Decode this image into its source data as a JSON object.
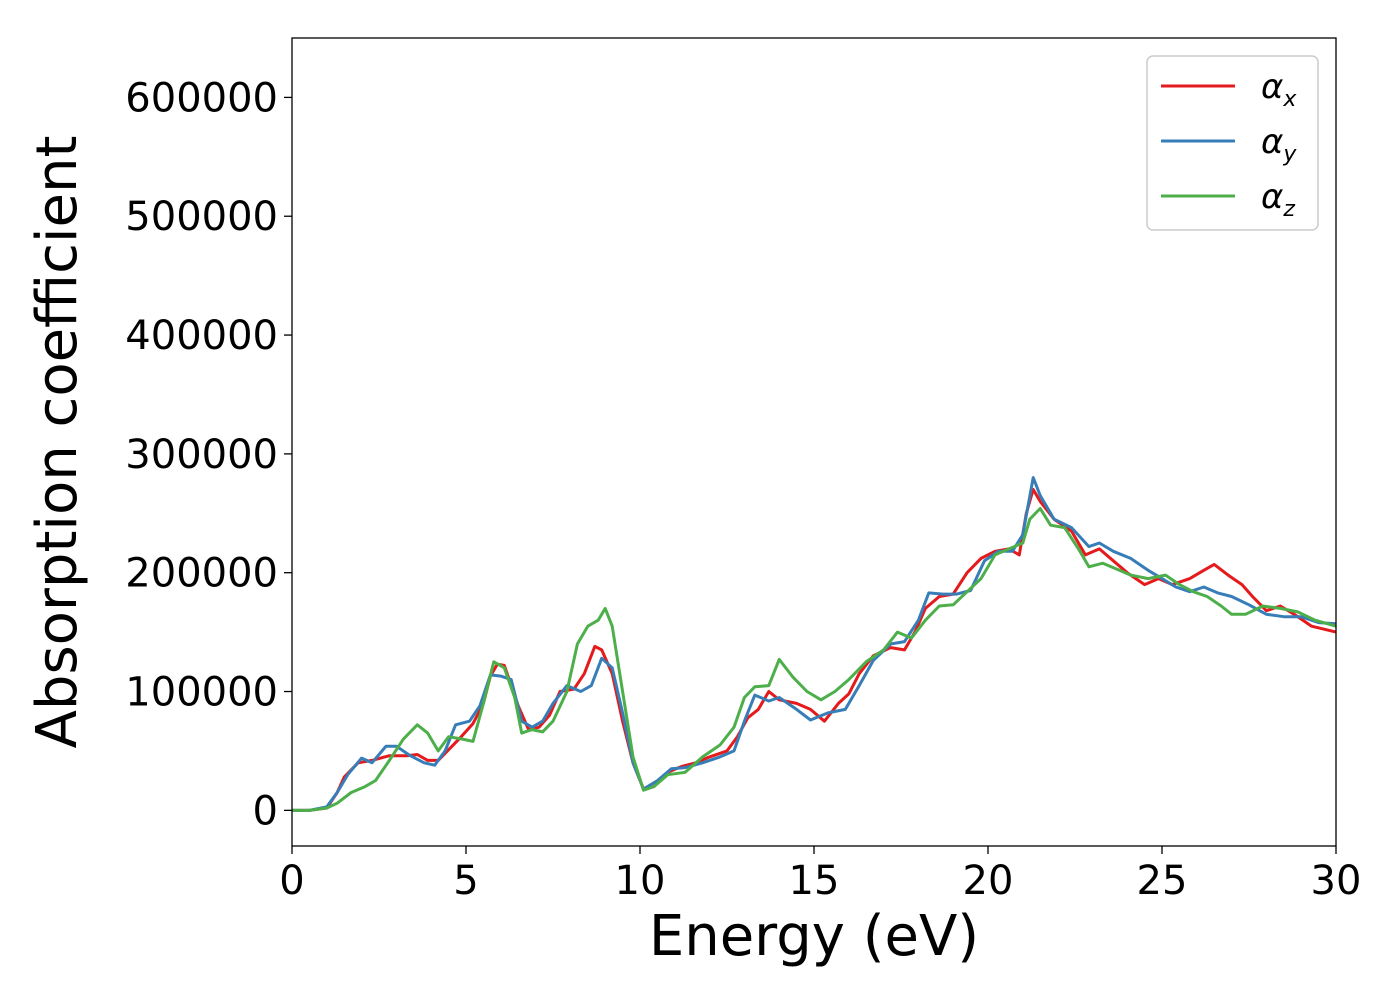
{
  "chart_data": {
    "type": "line",
    "xlabel": "Energy (eV)",
    "ylabel": "Absorption coefficient",
    "xlim": [
      0,
      30
    ],
    "ylim": [
      -30000,
      650000
    ],
    "xticks": [
      0,
      5,
      10,
      15,
      20,
      25,
      30
    ],
    "yticks": [
      0,
      100000,
      200000,
      300000,
      400000,
      500000,
      600000
    ],
    "legend_position": "top-right",
    "grid": false,
    "series": [
      {
        "name": "α_x",
        "label_base": "α",
        "label_sub": "x",
        "color": "#e41a1c",
        "points": [
          [
            0,
            0
          ],
          [
            0.5,
            0
          ],
          [
            1.0,
            2000
          ],
          [
            1.3,
            15000
          ],
          [
            1.5,
            28000
          ],
          [
            1.9,
            40000
          ],
          [
            2.3,
            42000
          ],
          [
            2.8,
            46000
          ],
          [
            3.3,
            46000
          ],
          [
            3.6,
            47000
          ],
          [
            3.9,
            42000
          ],
          [
            4.2,
            42000
          ],
          [
            4.4,
            48000
          ],
          [
            4.8,
            60000
          ],
          [
            5.2,
            73000
          ],
          [
            5.5,
            90000
          ],
          [
            5.7,
            113000
          ],
          [
            5.9,
            123000
          ],
          [
            6.1,
            122000
          ],
          [
            6.3,
            105000
          ],
          [
            6.5,
            88000
          ],
          [
            6.8,
            68000
          ],
          [
            7.1,
            70000
          ],
          [
            7.4,
            80000
          ],
          [
            7.7,
            100000
          ],
          [
            8.1,
            102000
          ],
          [
            8.4,
            115000
          ],
          [
            8.7,
            138000
          ],
          [
            8.9,
            135000
          ],
          [
            9.2,
            115000
          ],
          [
            9.5,
            75000
          ],
          [
            9.8,
            40000
          ],
          [
            10.1,
            18000
          ],
          [
            10.4,
            20000
          ],
          [
            10.8,
            32000
          ],
          [
            11.2,
            37000
          ],
          [
            11.6,
            40000
          ],
          [
            12.0,
            45000
          ],
          [
            12.5,
            50000
          ],
          [
            12.8,
            62000
          ],
          [
            13.1,
            78000
          ],
          [
            13.4,
            85000
          ],
          [
            13.7,
            100000
          ],
          [
            14.0,
            93000
          ],
          [
            14.5,
            90000
          ],
          [
            14.9,
            85000
          ],
          [
            15.3,
            75000
          ],
          [
            15.7,
            90000
          ],
          [
            16.0,
            98000
          ],
          [
            16.3,
            115000
          ],
          [
            16.7,
            130000
          ],
          [
            17.2,
            137000
          ],
          [
            17.6,
            135000
          ],
          [
            17.9,
            150000
          ],
          [
            18.2,
            170000
          ],
          [
            18.6,
            180000
          ],
          [
            19.0,
            182000
          ],
          [
            19.4,
            200000
          ],
          [
            19.8,
            212000
          ],
          [
            20.2,
            218000
          ],
          [
            20.6,
            220000
          ],
          [
            20.9,
            215000
          ],
          [
            21.1,
            250000
          ],
          [
            21.3,
            270000
          ],
          [
            21.5,
            260000
          ],
          [
            21.9,
            245000
          ],
          [
            22.4,
            235000
          ],
          [
            22.8,
            215000
          ],
          [
            23.2,
            220000
          ],
          [
            23.6,
            210000
          ],
          [
            24.0,
            200000
          ],
          [
            24.5,
            190000
          ],
          [
            24.9,
            195000
          ],
          [
            25.3,
            190000
          ],
          [
            25.8,
            195000
          ],
          [
            26.2,
            202000
          ],
          [
            26.5,
            207000
          ],
          [
            26.9,
            198000
          ],
          [
            27.3,
            190000
          ],
          [
            27.6,
            180000
          ],
          [
            28.0,
            168000
          ],
          [
            28.4,
            172000
          ],
          [
            28.8,
            165000
          ],
          [
            29.3,
            155000
          ],
          [
            30.0,
            150000
          ]
        ]
      },
      {
        "name": "α_y",
        "label_base": "α",
        "label_sub": "y",
        "color": "#377eb8",
        "points": [
          [
            0,
            0
          ],
          [
            0.5,
            0
          ],
          [
            1.0,
            3000
          ],
          [
            1.3,
            15000
          ],
          [
            1.6,
            30000
          ],
          [
            2.0,
            44000
          ],
          [
            2.3,
            40000
          ],
          [
            2.7,
            54000
          ],
          [
            3.0,
            54000
          ],
          [
            3.4,
            46000
          ],
          [
            3.8,
            40000
          ],
          [
            4.1,
            38000
          ],
          [
            4.4,
            50000
          ],
          [
            4.7,
            72000
          ],
          [
            5.1,
            75000
          ],
          [
            5.4,
            88000
          ],
          [
            5.7,
            114000
          ],
          [
            6.0,
            113000
          ],
          [
            6.3,
            110000
          ],
          [
            6.6,
            75000
          ],
          [
            6.9,
            70000
          ],
          [
            7.2,
            75000
          ],
          [
            7.5,
            90000
          ],
          [
            7.9,
            105000
          ],
          [
            8.3,
            100000
          ],
          [
            8.6,
            105000
          ],
          [
            8.9,
            128000
          ],
          [
            9.2,
            120000
          ],
          [
            9.5,
            82000
          ],
          [
            9.8,
            40000
          ],
          [
            10.1,
            18000
          ],
          [
            10.5,
            25000
          ],
          [
            10.9,
            35000
          ],
          [
            11.3,
            36000
          ],
          [
            11.8,
            40000
          ],
          [
            12.3,
            45000
          ],
          [
            12.7,
            50000
          ],
          [
            13.0,
            75000
          ],
          [
            13.3,
            97000
          ],
          [
            13.7,
            92000
          ],
          [
            14.0,
            95000
          ],
          [
            14.5,
            85000
          ],
          [
            14.9,
            76000
          ],
          [
            15.4,
            82000
          ],
          [
            15.9,
            85000
          ],
          [
            16.3,
            105000
          ],
          [
            16.7,
            126000
          ],
          [
            17.2,
            140000
          ],
          [
            17.6,
            142000
          ],
          [
            18.0,
            160000
          ],
          [
            18.3,
            183000
          ],
          [
            18.7,
            182000
          ],
          [
            19.1,
            182000
          ],
          [
            19.5,
            185000
          ],
          [
            19.9,
            210000
          ],
          [
            20.3,
            218000
          ],
          [
            20.7,
            218000
          ],
          [
            21.0,
            232000
          ],
          [
            21.3,
            280000
          ],
          [
            21.5,
            265000
          ],
          [
            21.9,
            245000
          ],
          [
            22.4,
            238000
          ],
          [
            22.9,
            222000
          ],
          [
            23.2,
            225000
          ],
          [
            23.6,
            218000
          ],
          [
            24.1,
            212000
          ],
          [
            24.6,
            202000
          ],
          [
            25.0,
            195000
          ],
          [
            25.4,
            188000
          ],
          [
            25.8,
            184000
          ],
          [
            26.2,
            188000
          ],
          [
            26.6,
            183000
          ],
          [
            27.0,
            180000
          ],
          [
            27.5,
            173000
          ],
          [
            28.0,
            165000
          ],
          [
            28.5,
            163000
          ],
          [
            29.0,
            163000
          ],
          [
            29.5,
            158000
          ],
          [
            30.0,
            157000
          ]
        ]
      },
      {
        "name": "α_z",
        "label_base": "α",
        "label_sub": "z",
        "color": "#4daf4a",
        "points": [
          [
            0,
            0
          ],
          [
            0.5,
            0
          ],
          [
            1.0,
            2000
          ],
          [
            1.3,
            6000
          ],
          [
            1.7,
            15000
          ],
          [
            2.1,
            20000
          ],
          [
            2.4,
            25000
          ],
          [
            2.8,
            42000
          ],
          [
            3.2,
            60000
          ],
          [
            3.6,
            72000
          ],
          [
            3.9,
            65000
          ],
          [
            4.2,
            50000
          ],
          [
            4.5,
            62000
          ],
          [
            4.9,
            60000
          ],
          [
            5.2,
            58000
          ],
          [
            5.5,
            90000
          ],
          [
            5.8,
            125000
          ],
          [
            6.1,
            120000
          ],
          [
            6.4,
            95000
          ],
          [
            6.6,
            65000
          ],
          [
            6.9,
            68000
          ],
          [
            7.2,
            66000
          ],
          [
            7.5,
            75000
          ],
          [
            7.9,
            100000
          ],
          [
            8.2,
            140000
          ],
          [
            8.5,
            155000
          ],
          [
            8.8,
            160000
          ],
          [
            9.0,
            170000
          ],
          [
            9.2,
            155000
          ],
          [
            9.5,
            100000
          ],
          [
            9.8,
            45000
          ],
          [
            10.1,
            17000
          ],
          [
            10.4,
            20000
          ],
          [
            10.8,
            30000
          ],
          [
            11.3,
            32000
          ],
          [
            11.8,
            45000
          ],
          [
            12.3,
            55000
          ],
          [
            12.7,
            70000
          ],
          [
            13.0,
            95000
          ],
          [
            13.3,
            104000
          ],
          [
            13.7,
            105000
          ],
          [
            14.0,
            127000
          ],
          [
            14.4,
            112000
          ],
          [
            14.8,
            100000
          ],
          [
            15.2,
            93000
          ],
          [
            15.6,
            100000
          ],
          [
            16.0,
            110000
          ],
          [
            16.5,
            125000
          ],
          [
            17.0,
            135000
          ],
          [
            17.4,
            150000
          ],
          [
            17.8,
            145000
          ],
          [
            18.2,
            160000
          ],
          [
            18.6,
            172000
          ],
          [
            19.0,
            173000
          ],
          [
            19.4,
            184000
          ],
          [
            19.8,
            195000
          ],
          [
            20.2,
            215000
          ],
          [
            20.6,
            220000
          ],
          [
            21.0,
            225000
          ],
          [
            21.2,
            245000
          ],
          [
            21.5,
            254000
          ],
          [
            21.8,
            240000
          ],
          [
            22.2,
            238000
          ],
          [
            22.6,
            220000
          ],
          [
            22.9,
            205000
          ],
          [
            23.3,
            208000
          ],
          [
            23.7,
            203000
          ],
          [
            24.1,
            198000
          ],
          [
            24.6,
            195000
          ],
          [
            25.1,
            198000
          ],
          [
            25.5,
            190000
          ],
          [
            25.9,
            184000
          ],
          [
            26.3,
            180000
          ],
          [
            26.7,
            172000
          ],
          [
            27.0,
            165000
          ],
          [
            27.4,
            165000
          ],
          [
            27.9,
            172000
          ],
          [
            28.4,
            170000
          ],
          [
            28.9,
            167000
          ],
          [
            29.4,
            160000
          ],
          [
            30.0,
            155000
          ]
        ]
      }
    ]
  }
}
